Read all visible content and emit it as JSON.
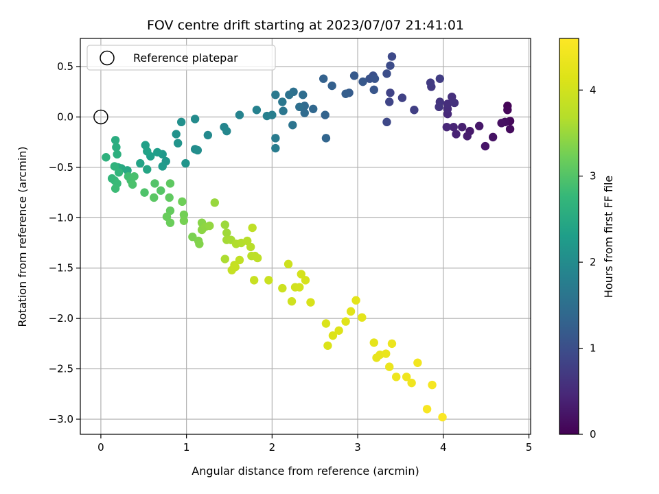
{
  "chart_data": {
    "type": "scatter",
    "title": "FOV centre drift starting at 2023/07/07 21:41:01",
    "xlabel": "Angular distance from reference (arcmin)",
    "ylabel": "Rotation from reference (arcmin)",
    "xlim": [
      -0.24,
      5.02
    ],
    "ylim": [
      -3.15,
      0.78
    ],
    "xticks": [
      0,
      1,
      2,
      3,
      4,
      5
    ],
    "xtick_labels": [
      "0",
      "1",
      "2",
      "3",
      "4",
      "5"
    ],
    "yticks": [
      0.5,
      0.0,
      -0.5,
      -1.0,
      -1.5,
      -2.0,
      -2.5,
      -3.0
    ],
    "ytick_labels": [
      "0.5",
      "0.0",
      "−0.5",
      "−1.0",
      "−1.5",
      "−2.0",
      "−2.5",
      "−3.0"
    ],
    "grid": true,
    "colorbar": {
      "label": "Hours from first FF file",
      "colormap": "viridis",
      "range": [
        0,
        4.6
      ],
      "ticks": [
        0,
        1,
        2,
        3,
        4
      ],
      "tick_labels": [
        "0",
        "1",
        "2",
        "3",
        "4"
      ]
    },
    "legend": {
      "position": "top-left",
      "entries": [
        {
          "label": "Reference platepar",
          "marker": "open-circle"
        }
      ]
    },
    "reference_point": {
      "x": 0.0,
      "y": 0.0
    },
    "points": [
      {
        "x": 4.75,
        "y": 0.11,
        "t": 0.03
      },
      {
        "x": 4.75,
        "y": 0.07,
        "t": 0.06
      },
      {
        "x": 4.78,
        "y": -0.04,
        "t": 0.09
      },
      {
        "x": 4.78,
        "y": -0.12,
        "t": 0.12
      },
      {
        "x": 4.72,
        "y": -0.05,
        "t": 0.15
      },
      {
        "x": 4.68,
        "y": -0.06,
        "t": 0.18
      },
      {
        "x": 4.58,
        "y": -0.2,
        "t": 0.21
      },
      {
        "x": 4.49,
        "y": -0.29,
        "t": 0.24
      },
      {
        "x": 4.42,
        "y": -0.09,
        "t": 0.27
      },
      {
        "x": 4.31,
        "y": -0.14,
        "t": 0.3
      },
      {
        "x": 4.28,
        "y": -0.19,
        "t": 0.33
      },
      {
        "x": 4.22,
        "y": -0.1,
        "t": 0.36
      },
      {
        "x": 4.15,
        "y": -0.17,
        "t": 0.39
      },
      {
        "x": 4.12,
        "y": -0.1,
        "t": 0.42
      },
      {
        "x": 4.04,
        "y": -0.1,
        "t": 0.45
      },
      {
        "x": 4.05,
        "y": 0.03,
        "t": 0.48
      },
      {
        "x": 4.05,
        "y": 0.08,
        "t": 0.51
      },
      {
        "x": 4.05,
        "y": 0.13,
        "t": 0.54
      },
      {
        "x": 4.1,
        "y": 0.2,
        "t": 0.57
      },
      {
        "x": 4.13,
        "y": 0.14,
        "t": 0.6
      },
      {
        "x": 3.96,
        "y": 0.15,
        "t": 0.63
      },
      {
        "x": 3.95,
        "y": 0.1,
        "t": 0.66
      },
      {
        "x": 3.86,
        "y": 0.3,
        "t": 0.69
      },
      {
        "x": 3.85,
        "y": 0.34,
        "t": 0.72
      },
      {
        "x": 3.96,
        "y": 0.38,
        "t": 0.75
      },
      {
        "x": 3.66,
        "y": 0.07,
        "t": 0.78
      },
      {
        "x": 3.52,
        "y": 0.19,
        "t": 0.81
      },
      {
        "x": 3.38,
        "y": 0.24,
        "t": 0.84
      },
      {
        "x": 3.37,
        "y": 0.15,
        "t": 0.87
      },
      {
        "x": 3.34,
        "y": -0.05,
        "t": 0.9
      },
      {
        "x": 3.4,
        "y": 0.6,
        "t": 0.93
      },
      {
        "x": 3.38,
        "y": 0.51,
        "t": 0.96
      },
      {
        "x": 3.34,
        "y": 0.43,
        "t": 0.99
      },
      {
        "x": 3.18,
        "y": 0.41,
        "t": 1.02
      },
      {
        "x": 3.14,
        "y": 0.38,
        "t": 1.05
      },
      {
        "x": 3.2,
        "y": 0.38,
        "t": 1.08
      },
      {
        "x": 3.19,
        "y": 0.27,
        "t": 1.11
      },
      {
        "x": 3.06,
        "y": 0.35,
        "t": 1.14
      },
      {
        "x": 2.96,
        "y": 0.41,
        "t": 1.17
      },
      {
        "x": 2.9,
        "y": 0.24,
        "t": 1.2
      },
      {
        "x": 2.86,
        "y": 0.23,
        "t": 1.23
      },
      {
        "x": 2.7,
        "y": 0.31,
        "t": 1.26
      },
      {
        "x": 2.6,
        "y": 0.38,
        "t": 1.29
      },
      {
        "x": 2.62,
        "y": 0.02,
        "t": 1.32
      },
      {
        "x": 2.63,
        "y": -0.21,
        "t": 1.35
      },
      {
        "x": 2.48,
        "y": 0.08,
        "t": 1.38
      },
      {
        "x": 2.38,
        "y": 0.11,
        "t": 1.41
      },
      {
        "x": 2.38,
        "y": 0.04,
        "t": 1.44
      },
      {
        "x": 2.36,
        "y": 0.22,
        "t": 1.47
      },
      {
        "x": 2.32,
        "y": 0.1,
        "t": 1.5
      },
      {
        "x": 2.25,
        "y": 0.25,
        "t": 1.53
      },
      {
        "x": 2.2,
        "y": 0.22,
        "t": 1.56
      },
      {
        "x": 2.24,
        "y": -0.08,
        "t": 1.59
      },
      {
        "x": 2.13,
        "y": 0.06,
        "t": 1.62
      },
      {
        "x": 2.12,
        "y": 0.15,
        "t": 1.65
      },
      {
        "x": 2.04,
        "y": 0.22,
        "t": 1.68
      },
      {
        "x": 2.04,
        "y": -0.21,
        "t": 1.71
      },
      {
        "x": 2.04,
        "y": -0.31,
        "t": 1.74
      },
      {
        "x": 2.0,
        "y": 0.02,
        "t": 1.77
      },
      {
        "x": 1.94,
        "y": 0.01,
        "t": 1.8
      },
      {
        "x": 1.82,
        "y": 0.07,
        "t": 1.83
      },
      {
        "x": 1.62,
        "y": 0.02,
        "t": 1.86
      },
      {
        "x": 1.44,
        "y": -0.1,
        "t": 1.89
      },
      {
        "x": 1.47,
        "y": -0.14,
        "t": 1.92
      },
      {
        "x": 1.25,
        "y": -0.18,
        "t": 1.95
      },
      {
        "x": 1.1,
        "y": -0.02,
        "t": 1.98
      },
      {
        "x": 1.1,
        "y": -0.32,
        "t": 2.01
      },
      {
        "x": 1.13,
        "y": -0.33,
        "t": 2.04
      },
      {
        "x": 0.94,
        "y": -0.05,
        "t": 2.07
      },
      {
        "x": 0.88,
        "y": -0.17,
        "t": 2.1
      },
      {
        "x": 0.9,
        "y": -0.26,
        "t": 2.13
      },
      {
        "x": 0.99,
        "y": -0.46,
        "t": 2.16
      },
      {
        "x": 0.76,
        "y": -0.44,
        "t": 2.19
      },
      {
        "x": 0.72,
        "y": -0.37,
        "t": 2.22
      },
      {
        "x": 0.72,
        "y": -0.49,
        "t": 2.25
      },
      {
        "x": 0.66,
        "y": -0.35,
        "t": 2.28
      },
      {
        "x": 0.58,
        "y": -0.39,
        "t": 2.31
      },
      {
        "x": 0.52,
        "y": -0.28,
        "t": 2.34
      },
      {
        "x": 0.54,
        "y": -0.34,
        "t": 2.37
      },
      {
        "x": 0.46,
        "y": -0.46,
        "t": 2.4
      },
      {
        "x": 0.54,
        "y": -0.52,
        "t": 2.43
      },
      {
        "x": 0.31,
        "y": -0.53,
        "t": 2.46
      },
      {
        "x": 0.24,
        "y": -0.51,
        "t": 2.49
      },
      {
        "x": 0.2,
        "y": -0.5,
        "t": 2.52
      },
      {
        "x": 0.17,
        "y": -0.23,
        "t": 2.55
      },
      {
        "x": 0.18,
        "y": -0.3,
        "t": 2.58
      },
      {
        "x": 0.19,
        "y": -0.37,
        "t": 2.61
      },
      {
        "x": 0.06,
        "y": -0.4,
        "t": 2.64
      },
      {
        "x": 0.16,
        "y": -0.49,
        "t": 2.67
      },
      {
        "x": 0.21,
        "y": -0.55,
        "t": 2.7
      },
      {
        "x": 0.13,
        "y": -0.61,
        "t": 2.73
      },
      {
        "x": 0.16,
        "y": -0.63,
        "t": 2.76
      },
      {
        "x": 0.19,
        "y": -0.66,
        "t": 2.79
      },
      {
        "x": 0.17,
        "y": -0.71,
        "t": 2.82
      },
      {
        "x": 0.32,
        "y": -0.59,
        "t": 2.85
      },
      {
        "x": 0.35,
        "y": -0.63,
        "t": 2.88
      },
      {
        "x": 0.39,
        "y": -0.59,
        "t": 2.91
      },
      {
        "x": 0.37,
        "y": -0.67,
        "t": 2.94
      },
      {
        "x": 0.51,
        "y": -0.75,
        "t": 2.97
      },
      {
        "x": 0.63,
        "y": -0.66,
        "t": 3.0
      },
      {
        "x": 0.7,
        "y": -0.73,
        "t": 3.03
      },
      {
        "x": 0.62,
        "y": -0.8,
        "t": 3.06
      },
      {
        "x": 0.81,
        "y": -0.66,
        "t": 3.09
      },
      {
        "x": 0.8,
        "y": -0.8,
        "t": 3.11
      },
      {
        "x": 0.81,
        "y": -0.93,
        "t": 3.14
      },
      {
        "x": 0.77,
        "y": -0.99,
        "t": 3.17
      },
      {
        "x": 0.81,
        "y": -1.05,
        "t": 3.19
      },
      {
        "x": 0.95,
        "y": -0.84,
        "t": 3.22
      },
      {
        "x": 0.97,
        "y": -0.97,
        "t": 3.25
      },
      {
        "x": 0.97,
        "y": -1.03,
        "t": 3.27
      },
      {
        "x": 1.07,
        "y": -1.19,
        "t": 3.3
      },
      {
        "x": 1.14,
        "y": -1.23,
        "t": 3.33
      },
      {
        "x": 1.15,
        "y": -1.26,
        "t": 3.35
      },
      {
        "x": 1.18,
        "y": -1.05,
        "t": 3.38
      },
      {
        "x": 1.18,
        "y": -1.12,
        "t": 3.41
      },
      {
        "x": 1.22,
        "y": -1.09,
        "t": 3.43
      },
      {
        "x": 1.27,
        "y": -1.08,
        "t": 3.46
      },
      {
        "x": 1.33,
        "y": -0.85,
        "t": 3.49
      },
      {
        "x": 1.45,
        "y": -1.07,
        "t": 3.51
      },
      {
        "x": 1.47,
        "y": -1.15,
        "t": 3.54
      },
      {
        "x": 1.47,
        "y": -1.22,
        "t": 3.57
      },
      {
        "x": 1.52,
        "y": -1.22,
        "t": 3.59
      },
      {
        "x": 1.45,
        "y": -1.41,
        "t": 3.62
      },
      {
        "x": 1.58,
        "y": -1.26,
        "t": 3.65
      },
      {
        "x": 1.64,
        "y": -1.25,
        "t": 3.67
      },
      {
        "x": 1.71,
        "y": -1.23,
        "t": 3.7
      },
      {
        "x": 1.75,
        "y": -1.29,
        "t": 3.72
      },
      {
        "x": 1.76,
        "y": -1.38,
        "t": 3.74
      },
      {
        "x": 1.8,
        "y": -1.38,
        "t": 3.76
      },
      {
        "x": 1.83,
        "y": -1.4,
        "t": 3.78
      },
      {
        "x": 1.77,
        "y": -1.1,
        "t": 3.8
      },
      {
        "x": 1.62,
        "y": -1.42,
        "t": 3.82
      },
      {
        "x": 1.56,
        "y": -1.47,
        "t": 3.84
      },
      {
        "x": 1.53,
        "y": -1.52,
        "t": 3.86
      },
      {
        "x": 1.57,
        "y": -1.49,
        "t": 3.88
      },
      {
        "x": 1.79,
        "y": -1.62,
        "t": 3.9
      },
      {
        "x": 1.96,
        "y": -1.62,
        "t": 3.92
      },
      {
        "x": 2.12,
        "y": -1.7,
        "t": 3.94
      },
      {
        "x": 2.19,
        "y": -1.46,
        "t": 3.96
      },
      {
        "x": 2.23,
        "y": -1.83,
        "t": 3.98
      },
      {
        "x": 2.27,
        "y": -1.69,
        "t": 4.0
      },
      {
        "x": 2.32,
        "y": -1.69,
        "t": 4.02
      },
      {
        "x": 2.34,
        "y": -1.56,
        "t": 4.04
      },
      {
        "x": 2.39,
        "y": -1.62,
        "t": 4.06
      },
      {
        "x": 2.45,
        "y": -1.84,
        "t": 4.08
      },
      {
        "x": 2.63,
        "y": -2.05,
        "t": 4.1
      },
      {
        "x": 2.65,
        "y": -2.27,
        "t": 4.12
      },
      {
        "x": 2.71,
        "y": -2.17,
        "t": 4.14
      },
      {
        "x": 2.78,
        "y": -2.12,
        "t": 4.16
      },
      {
        "x": 2.86,
        "y": -2.03,
        "t": 4.18
      },
      {
        "x": 2.92,
        "y": -1.93,
        "t": 4.2
      },
      {
        "x": 2.98,
        "y": -1.82,
        "t": 4.22
      },
      {
        "x": 3.05,
        "y": -1.99,
        "t": 4.24
      },
      {
        "x": 3.19,
        "y": -2.24,
        "t": 4.26
      },
      {
        "x": 3.22,
        "y": -2.39,
        "t": 4.28
      },
      {
        "x": 3.26,
        "y": -2.36,
        "t": 4.3
      },
      {
        "x": 3.33,
        "y": -2.35,
        "t": 4.32
      },
      {
        "x": 3.37,
        "y": -2.48,
        "t": 4.34
      },
      {
        "x": 3.4,
        "y": -2.25,
        "t": 4.36
      },
      {
        "x": 3.45,
        "y": -2.58,
        "t": 4.38
      },
      {
        "x": 3.57,
        "y": -2.58,
        "t": 4.4
      },
      {
        "x": 3.63,
        "y": -2.64,
        "t": 4.42
      },
      {
        "x": 3.7,
        "y": -2.44,
        "t": 4.44
      },
      {
        "x": 3.87,
        "y": -2.66,
        "t": 4.48
      },
      {
        "x": 3.81,
        "y": -2.9,
        "t": 4.52
      },
      {
        "x": 3.99,
        "y": -2.98,
        "t": 4.56
      }
    ]
  }
}
